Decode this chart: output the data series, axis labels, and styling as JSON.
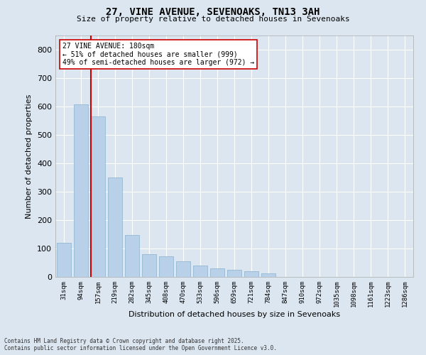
{
  "title1": "27, VINE AVENUE, SEVENOAKS, TN13 3AH",
  "title2": "Size of property relative to detached houses in Sevenoaks",
  "xlabel": "Distribution of detached houses by size in Sevenoaks",
  "ylabel": "Number of detached properties",
  "categories": [
    "31sqm",
    "94sqm",
    "157sqm",
    "219sqm",
    "282sqm",
    "345sqm",
    "408sqm",
    "470sqm",
    "533sqm",
    "596sqm",
    "659sqm",
    "721sqm",
    "784sqm",
    "847sqm",
    "910sqm",
    "972sqm",
    "1035sqm",
    "1098sqm",
    "1161sqm",
    "1223sqm",
    "1286sqm"
  ],
  "values": [
    120,
    608,
    565,
    350,
    147,
    80,
    73,
    55,
    40,
    30,
    25,
    20,
    12,
    0,
    0,
    0,
    0,
    0,
    0,
    0,
    0
  ],
  "bar_color": "#b8d0e8",
  "bar_edge_color": "#8ab0cc",
  "vline_color": "#cc0000",
  "annotation_text": "27 VINE AVENUE: 180sqm\n← 51% of detached houses are smaller (999)\n49% of semi-detached houses are larger (972) →",
  "annotation_box_color": "#ffffff",
  "annotation_box_edge": "#cc0000",
  "bg_color": "#dce6f0",
  "plot_bg_color": "#dce6f0",
  "footer": "Contains HM Land Registry data © Crown copyright and database right 2025.\nContains public sector information licensed under the Open Government Licence v3.0.",
  "ylim": [
    0,
    850
  ],
  "yticks": [
    0,
    100,
    200,
    300,
    400,
    500,
    600,
    700,
    800
  ]
}
